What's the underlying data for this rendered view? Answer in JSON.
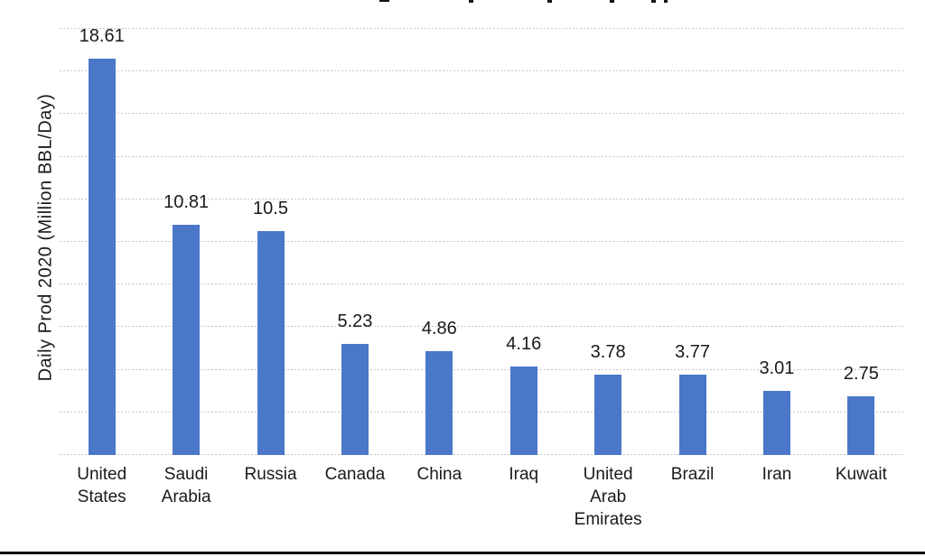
{
  "chart_data": {
    "type": "bar",
    "title": "",
    "categories": [
      "United States",
      "Saudi Arabia",
      "Russia",
      "Canada",
      "China",
      "Iraq",
      "United Arab Emirates",
      "Brazil",
      "Iran",
      "Kuwait"
    ],
    "values": [
      18.61,
      10.81,
      10.5,
      5.23,
      4.86,
      4.16,
      3.78,
      3.77,
      3.01,
      2.75
    ],
    "data_labels": [
      "18.61",
      "10.81",
      "10.5",
      "5.23",
      "4.86",
      "4.16",
      "3.78",
      "3.77",
      "3.01",
      "2.75"
    ],
    "xlabel": "",
    "ylabel": "Daily Prod 2020 (Million BBL/Day)",
    "ylim": [
      0,
      20
    ],
    "gridline_step": 2,
    "grid": "horizontal dotted gridlines, no y-axis tick labels",
    "legend": "none",
    "bar_color": "#4a77c8",
    "gridline_color": "#c6c6c6",
    "text_color": "#1a1a1a"
  }
}
